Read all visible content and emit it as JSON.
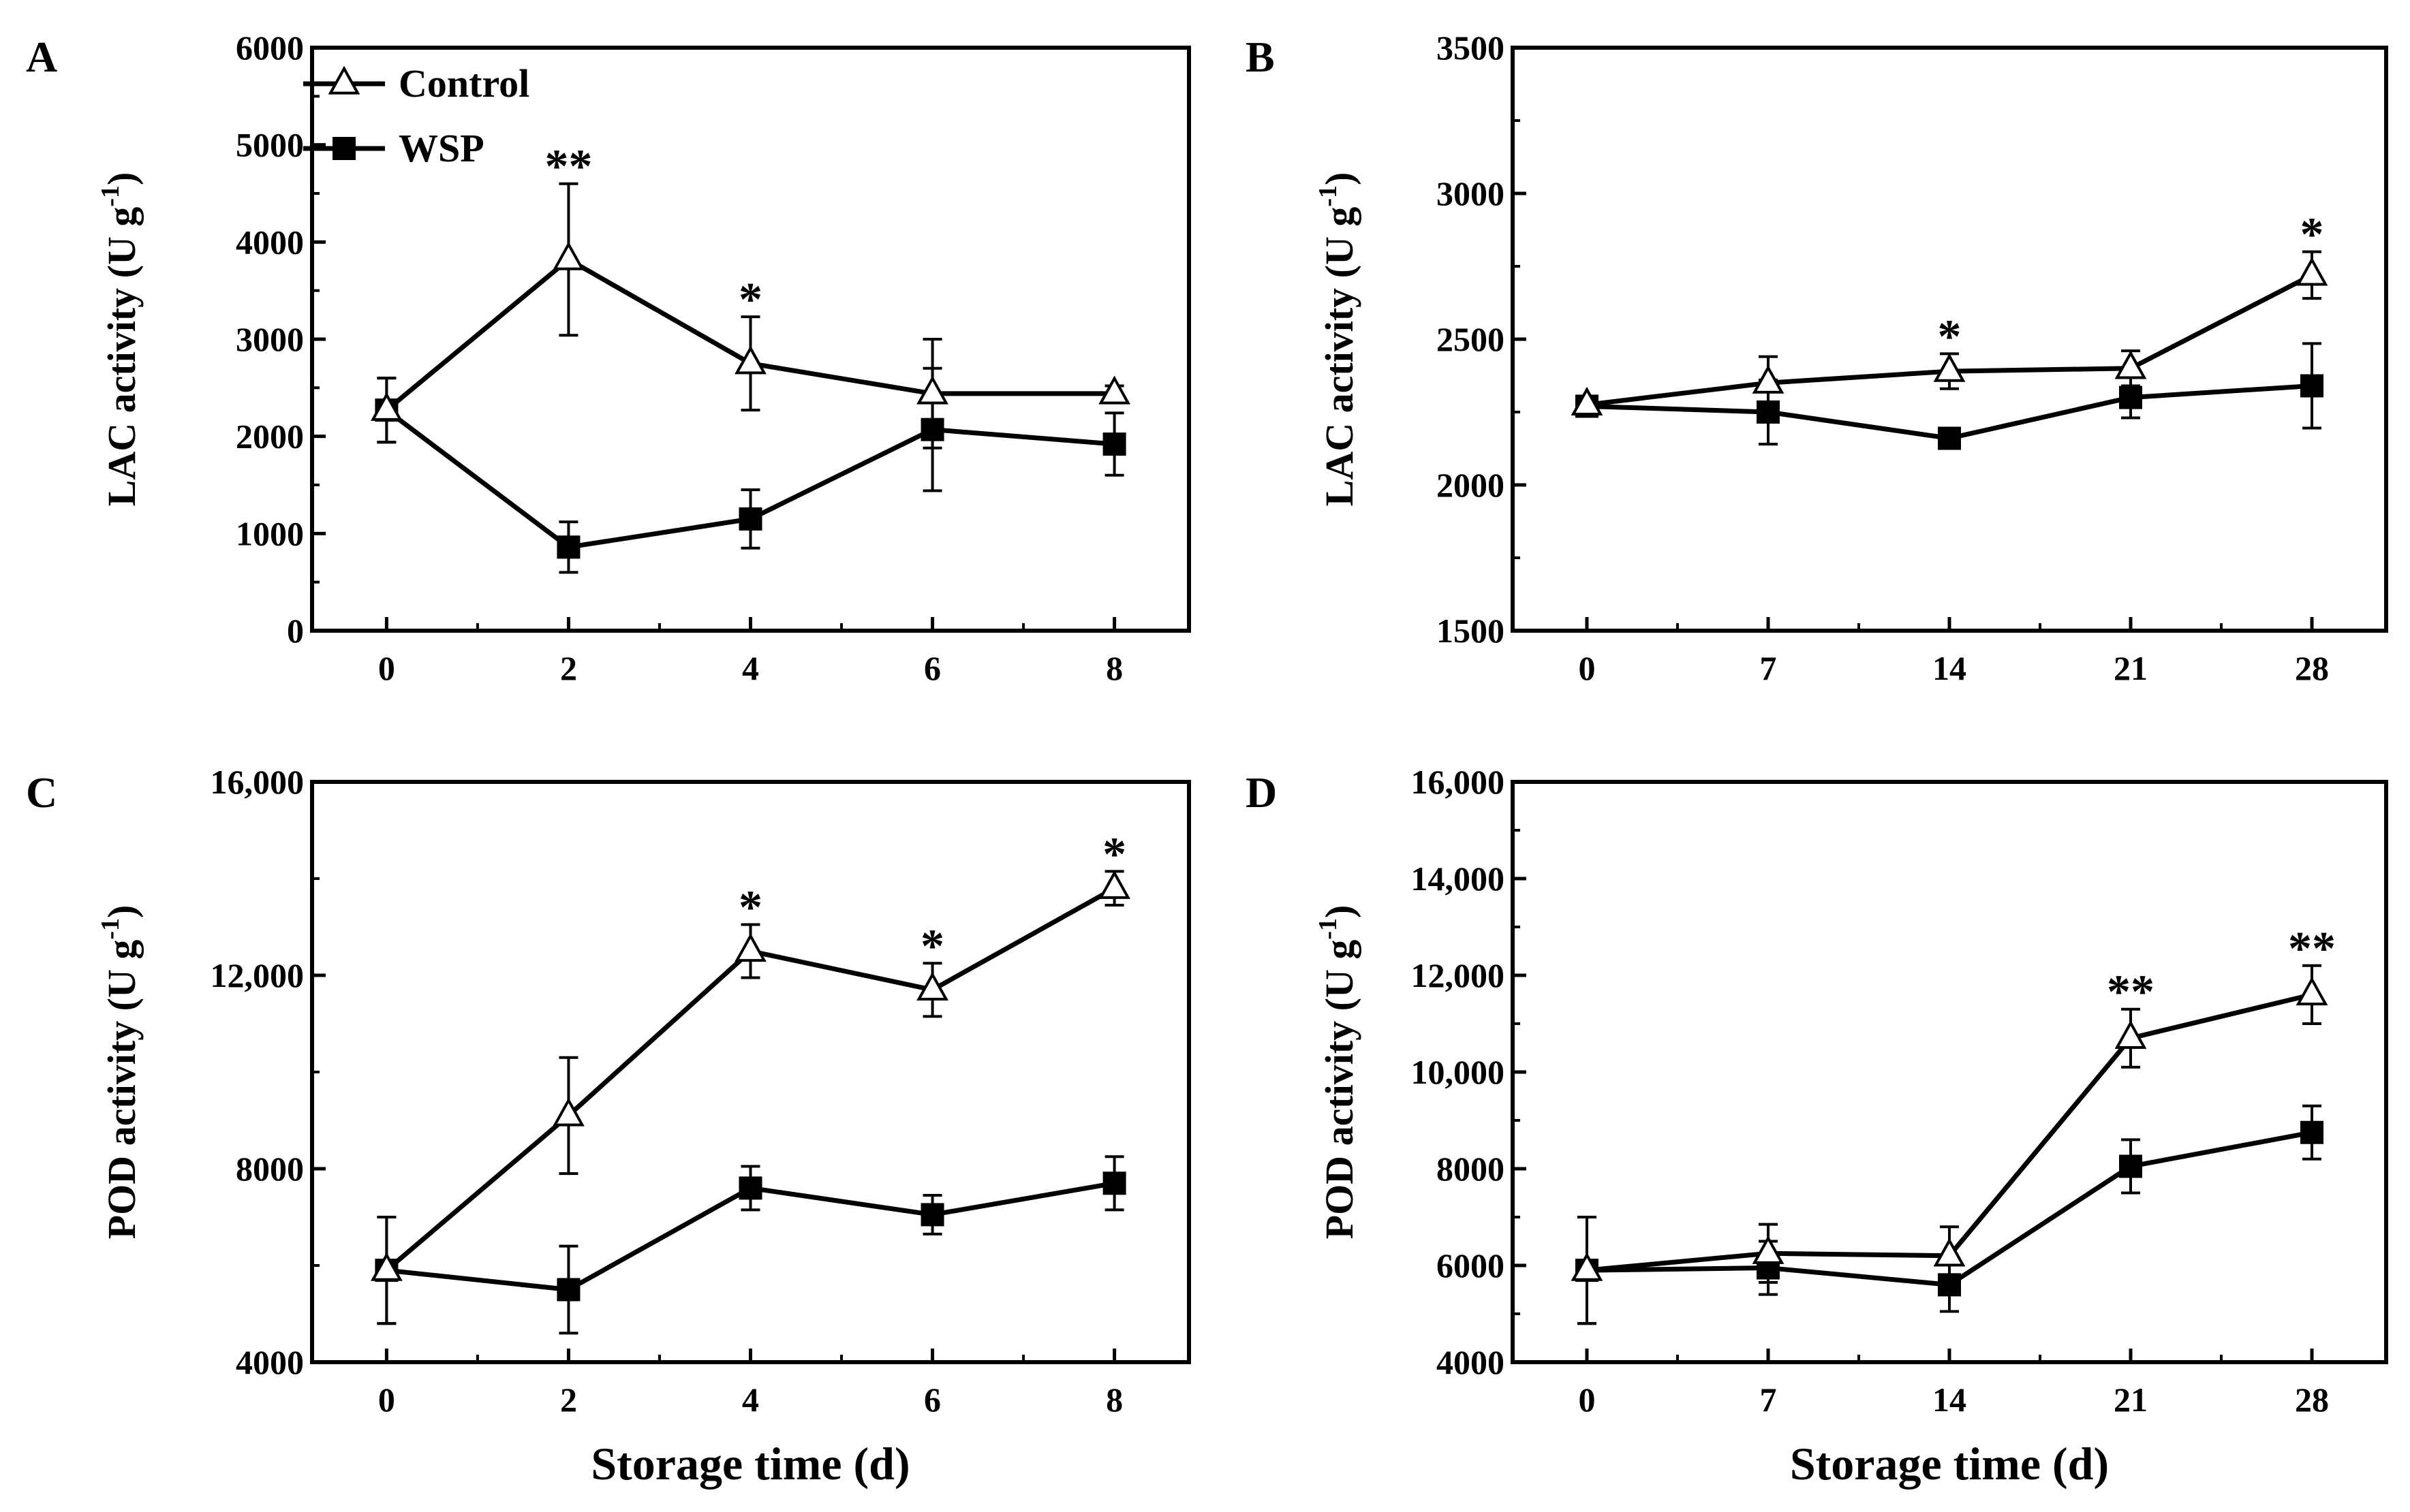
{
  "legend": {
    "control": "Control",
    "wsp": "WSP"
  },
  "x_axis_title": "Storage time (d)",
  "chart_data": [
    {
      "panel": "A",
      "type": "line",
      "ylabel_main": "LAC activity (U g",
      "ylabel_exp": "-1",
      "ylabel_close": ")",
      "xlabel": "",
      "categories": [
        "0",
        "2",
        "4",
        "6",
        "8"
      ],
      "ylim": [
        0,
        6000
      ],
      "yticks": [
        0,
        1000,
        2000,
        3000,
        4000,
        5000,
        6000
      ],
      "ytick_labels": [
        "0",
        "1000",
        "2000",
        "3000",
        "4000",
        "5000",
        "6000"
      ],
      "series": [
        {
          "name": "Control",
          "values": [
            2270,
            3820,
            2750,
            2440,
            2440
          ],
          "errors": [
            330,
            780,
            480,
            560,
            80
          ],
          "stars": [
            "",
            "**",
            "*",
            "",
            ""
          ]
        },
        {
          "name": "WSP",
          "values": [
            2270,
            860,
            1150,
            2070,
            1920
          ],
          "errors": [
            330,
            260,
            300,
            630,
            320
          ]
        }
      ]
    },
    {
      "panel": "B",
      "type": "line",
      "ylabel_main": "LAC activity (U g",
      "ylabel_exp": "-1",
      "ylabel_close": ")",
      "xlabel": "",
      "categories": [
        "0",
        "7",
        "14",
        "21",
        "28"
      ],
      "ylim": [
        1500,
        3500
      ],
      "yticks": [
        1500,
        2000,
        2500,
        3000,
        3500
      ],
      "ytick_labels": [
        "1500",
        "2000",
        "2500",
        "3000",
        "3500"
      ],
      "series": [
        {
          "name": "Control",
          "values": [
            2275,
            2350,
            2390,
            2400,
            2720
          ],
          "errors": [
            25,
            90,
            60,
            60,
            80
          ],
          "stars": [
            "",
            "",
            "*",
            "",
            "*"
          ]
        },
        {
          "name": "WSP",
          "values": [
            2270,
            2250,
            2160,
            2300,
            2340
          ],
          "errors": [
            25,
            110,
            30,
            70,
            145
          ]
        }
      ]
    },
    {
      "panel": "C",
      "type": "line",
      "ylabel_main": "POD activity (U g",
      "ylabel_exp": "-1",
      "ylabel_close": ")",
      "xlabel": "Storage time (d)",
      "categories": [
        "0",
        "2",
        "4",
        "6",
        "8"
      ],
      "ylim": [
        4000,
        16000
      ],
      "yticks": [
        4000,
        8000,
        12000,
        16000
      ],
      "ytick_labels": [
        "4000",
        "8000",
        "12,000",
        "16,000"
      ],
      "series": [
        {
          "name": "Control",
          "values": [
            5900,
            9100,
            12500,
            11700,
            13800
          ],
          "errors": [
            1100,
            1200,
            550,
            550,
            350
          ],
          "stars": [
            "",
            "",
            "*",
            "*",
            "*"
          ]
        },
        {
          "name": "WSP",
          "values": [
            5900,
            5500,
            7600,
            7050,
            7700
          ],
          "errors": [
            1100,
            900,
            450,
            400,
            550
          ]
        }
      ]
    },
    {
      "panel": "D",
      "type": "line",
      "ylabel_main": "POD activity (U g",
      "ylabel_exp": "-1",
      "ylabel_close": ")",
      "xlabel": "Storage time (d)",
      "categories": [
        "0",
        "7",
        "14",
        "21",
        "28"
      ],
      "ylim": [
        4000,
        16000
      ],
      "yticks": [
        4000,
        6000,
        8000,
        10000,
        12000,
        14000,
        16000
      ],
      "ytick_labels": [
        "4000",
        "6000",
        "8000",
        "10,000",
        "12,000",
        "14,000",
        "16,000"
      ],
      "series": [
        {
          "name": "Control",
          "values": [
            5900,
            6250,
            6200,
            10700,
            11600
          ],
          "errors": [
            1100,
            600,
            600,
            600,
            600
          ],
          "stars": [
            "",
            "",
            "",
            "**",
            "**"
          ]
        },
        {
          "name": "WSP",
          "values": [
            5900,
            5950,
            5600,
            8050,
            8750
          ],
          "errors": [
            1100,
            550,
            550,
            550,
            550
          ]
        }
      ]
    }
  ]
}
